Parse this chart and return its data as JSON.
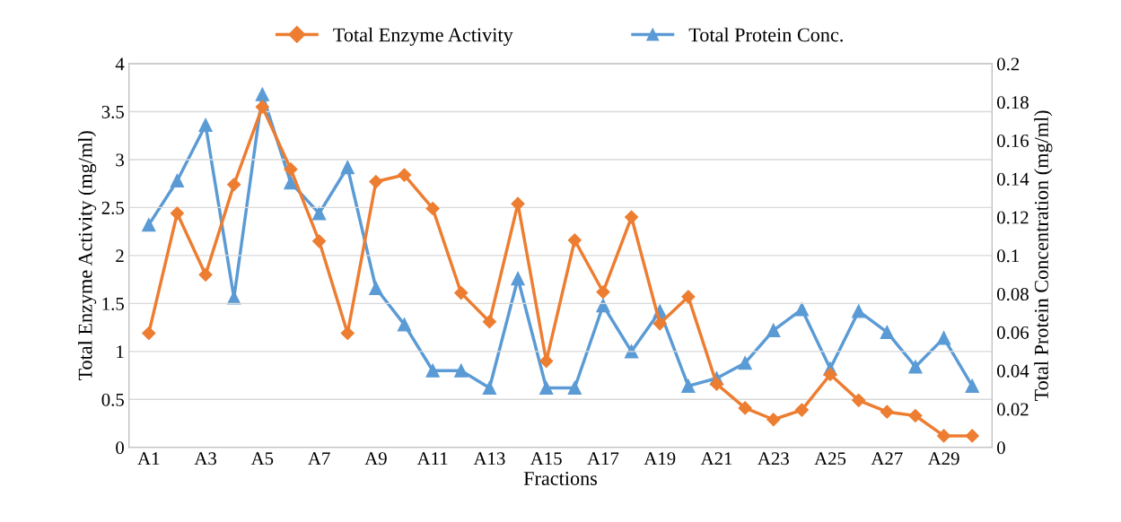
{
  "chart_data": {
    "type": "line",
    "xlabel": "Fractions",
    "ylabel": "Total Enzyme Activity (mg/ml)",
    "y2label": "Total Protein Concentration (mg/ml)",
    "categories": [
      "A1",
      null,
      "A3",
      null,
      "A5",
      null,
      "A7",
      null,
      "A9",
      null,
      "A11",
      null,
      "A13",
      null,
      "A15",
      null,
      "A17",
      null,
      "A19",
      null,
      "A21",
      null,
      "A23",
      null,
      "A25",
      null,
      "A27",
      null,
      "A29",
      null
    ],
    "series": [
      {
        "name": "Total Enzyme Activity",
        "color": "#ed7d31",
        "marker": "diamond",
        "values": [
          1.19,
          2.44,
          1.8,
          2.74,
          3.55,
          2.9,
          2.15,
          1.19,
          2.77,
          2.84,
          2.49,
          1.61,
          1.31,
          2.54,
          0.9,
          2.16,
          1.62,
          2.4,
          1.29,
          1.57,
          0.66,
          0.41,
          0.29,
          0.39,
          0.76,
          0.49,
          0.37,
          0.33,
          0.12,
          0.12
        ]
      },
      {
        "name": "Total Protein Conc.",
        "color": "#5b9bd5",
        "marker": "triangle",
        "axis": "y2",
        "values": [
          0.116,
          0.139,
          0.168,
          0.078,
          0.184,
          0.138,
          0.122,
          0.146,
          0.083,
          0.064,
          0.04,
          0.04,
          0.031,
          0.088,
          0.031,
          0.031,
          0.074,
          0.05,
          0.071,
          0.032,
          0.036,
          0.044,
          0.061,
          0.072,
          0.041,
          0.071,
          0.06,
          0.042,
          0.057,
          0.032
        ]
      }
    ],
    "ylim": [
      0,
      4
    ],
    "yticks": [
      0,
      0.5,
      1,
      1.5,
      2,
      2.5,
      3,
      3.5,
      4
    ],
    "y2lim": [
      0,
      0.2
    ],
    "y2ticks": [
      0,
      0.02,
      0.04,
      0.06,
      0.08,
      0.1,
      0.12,
      0.14,
      0.16,
      0.18,
      0.2
    ],
    "grid": "y",
    "legend": "top",
    "line_style": "solid"
  }
}
